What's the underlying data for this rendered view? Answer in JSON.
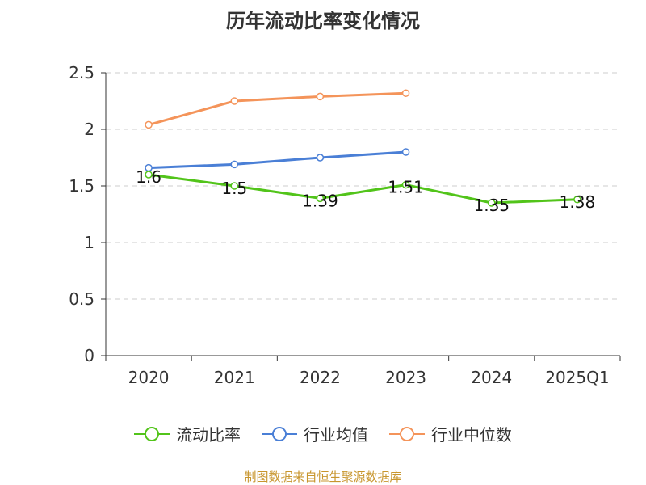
{
  "chart_data": {
    "type": "line",
    "title": "历年流动比率变化情况",
    "categories": [
      "2020",
      "2021",
      "2022",
      "2023",
      "2024",
      "2025Q1"
    ],
    "ylim": [
      0,
      2.5
    ],
    "yticks": [
      "0",
      "0.5",
      "1",
      "1.5",
      "2",
      "2.5"
    ],
    "grid": true,
    "legend_position": "bottom",
    "series": [
      {
        "name": "流动比率",
        "color": "#52c41a",
        "values": [
          1.6,
          1.5,
          1.39,
          1.51,
          1.35,
          1.38
        ],
        "labels": [
          "1.6",
          "1.5",
          "1.39",
          "1.51",
          "1.35",
          "1.38"
        ]
      },
      {
        "name": "行业均值",
        "color": "#4a7fd6",
        "values": [
          1.66,
          1.69,
          1.75,
          1.8,
          null,
          null
        ]
      },
      {
        "name": "行业中位数",
        "color": "#f4945a",
        "values": [
          2.04,
          2.25,
          2.29,
          2.32,
          null,
          null
        ]
      }
    ],
    "source_note": "制图数据来自恒生聚源数据库"
  }
}
